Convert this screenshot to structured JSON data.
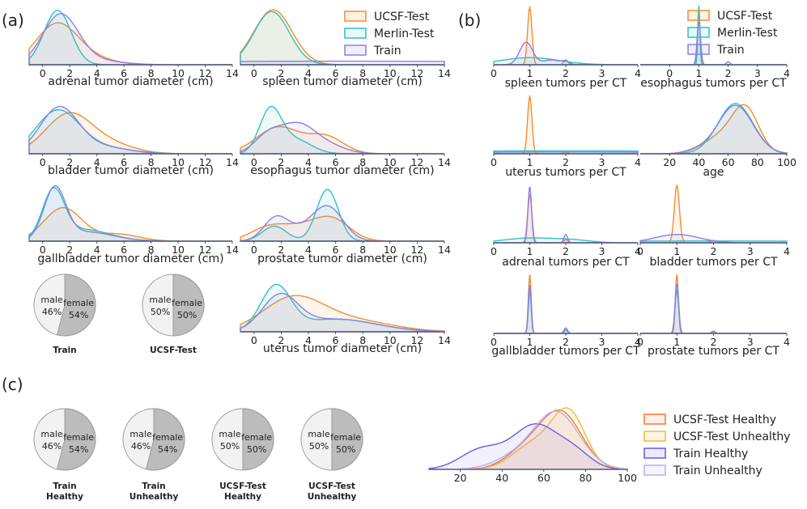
{
  "panel_labels": {
    "a": "(a)",
    "b": "(b)",
    "c": "(c)"
  },
  "colors": {
    "UCSF-Test": "#f28e2b",
    "Merlin-Test": "#2ec4c0",
    "Train": "#8a7fe6",
    "UCSF-Test Healthy": "#f07a30",
    "UCSF-Test Unhealthy": "#f4b836",
    "Train Healthy": "#6b58e0",
    "Train Unhealthy": "#b9b0ee"
  },
  "legend_a": [
    "UCSF-Test",
    "Merlin-Test",
    "Train"
  ],
  "legend_b": [
    "UCSF-Test",
    "Merlin-Test",
    "Train"
  ],
  "legend_c": [
    "UCSF-Test Healthy",
    "UCSF-Test Unhealthy",
    "Train Healthy",
    "Train Unhealthy"
  ],
  "pies_a": [
    {
      "name": "pie-train",
      "caption": [
        "Train"
      ],
      "male_label": "male",
      "male_pct": "46%",
      "female_label": "female",
      "female_pct": "54%",
      "female_share": 0.54
    },
    {
      "name": "pie-ucsf-test",
      "caption": [
        "UCSF-Test"
      ],
      "male_label": "male",
      "male_pct": "50%",
      "female_label": "female",
      "female_pct": "50%",
      "female_share": 0.5
    }
  ],
  "pies_c": [
    {
      "name": "pie-train-healthy",
      "caption": [
        "Train",
        "Healthy"
      ],
      "male_label": "male",
      "male_pct": "46%",
      "female_label": "female",
      "female_pct": "54%",
      "female_share": 0.54
    },
    {
      "name": "pie-train-unhealthy",
      "caption": [
        "Train",
        "Unhealthy"
      ],
      "male_label": "male",
      "male_pct": "46%",
      "female_label": "female",
      "female_pct": "54%",
      "female_share": 0.54
    },
    {
      "name": "pie-ucsf-test-healthy",
      "caption": [
        "UCSF-Test",
        "Healthy"
      ],
      "male_label": "male",
      "male_pct": "50%",
      "female_label": "female",
      "female_pct": "50%",
      "female_share": 0.5
    },
    {
      "name": "pie-ucsf-test-unhealthy",
      "caption": [
        "UCSF-Test",
        "Unhealthy"
      ],
      "male_label": "male",
      "male_pct": "50%",
      "female_label": "female",
      "female_pct": "50%",
      "female_share": 0.5
    }
  ],
  "chart_data": [
    {
      "id": "a-adrenal",
      "type": "area",
      "xlabel": "adrenal tumor diameter (cm)",
      "xlim": [
        -1,
        14
      ],
      "xticks": [
        0,
        2,
        4,
        6,
        8,
        10,
        12,
        14
      ],
      "ylim": [
        0,
        1
      ],
      "series": [
        {
          "name": "UCSF-Test",
          "comps": [
            [
              1.0,
              1.5,
              0.65
            ],
            [
              3.2,
              1.8,
              0.12
            ]
          ]
        },
        {
          "name": "Merlin-Test",
          "comps": [
            [
              1.1,
              1.0,
              0.92
            ]
          ]
        },
        {
          "name": "Train",
          "comps": [
            [
              1.3,
              1.3,
              0.82
            ],
            [
              3.5,
              2.0,
              0.08
            ]
          ]
        }
      ]
    },
    {
      "id": "a-spleen",
      "type": "area",
      "xlabel": "spleen tumor diameter (cm)",
      "xlim": [
        -1,
        14
      ],
      "xticks": [
        0,
        2,
        4,
        6,
        8,
        10,
        12,
        14
      ],
      "ylim": [
        0,
        1
      ],
      "series": [
        {
          "name": "UCSF-Test",
          "comps": [
            [
              1.4,
              1.4,
              0.93
            ]
          ]
        },
        {
          "name": "Merlin-Test",
          "comps": [
            [
              1.3,
              1.3,
              0.9
            ]
          ]
        },
        {
          "name": "Train",
          "comps": [
            [
              6,
              20,
              0.06
            ]
          ]
        }
      ]
    },
    {
      "id": "a-bladder",
      "type": "area",
      "xlabel": "bladder tumor diameter (cm)",
      "xlim": [
        -1,
        14
      ],
      "xticks": [
        0,
        2,
        4,
        6,
        8,
        10,
        12,
        14
      ],
      "ylim": [
        0,
        1
      ],
      "series": [
        {
          "name": "UCSF-Test",
          "comps": [
            [
              1.9,
              1.7,
              0.66
            ],
            [
              5.0,
              1.8,
              0.15
            ]
          ]
        },
        {
          "name": "Merlin-Test",
          "comps": [
            [
              1.1,
              1.6,
              0.72
            ],
            [
              4.5,
              2.0,
              0.1
            ]
          ]
        },
        {
          "name": "Train",
          "comps": [
            [
              1.2,
              1.4,
              0.76
            ],
            [
              4.2,
              2.0,
              0.12
            ]
          ]
        }
      ]
    },
    {
      "id": "a-esophagus",
      "type": "area",
      "xlabel": "esophagus tumor diameter (cm)",
      "xlim": [
        -1,
        14
      ],
      "xticks": [
        0,
        2,
        4,
        6,
        8,
        10,
        12,
        14
      ],
      "ylim": [
        0,
        1
      ],
      "series": [
        {
          "name": "UCSF-Test",
          "comps": [
            [
              1.8,
              1.6,
              0.45
            ],
            [
              5.3,
              1.3,
              0.28
            ]
          ]
        },
        {
          "name": "Merlin-Test",
          "comps": [
            [
              1.2,
              0.8,
              0.72
            ],
            [
              3.0,
              1.2,
              0.24
            ]
          ]
        },
        {
          "name": "Train",
          "comps": [
            [
              1.0,
              1.0,
              0.28
            ],
            [
              3.2,
              1.3,
              0.48
            ],
            [
              5.5,
              1.3,
              0.12
            ]
          ]
        }
      ]
    },
    {
      "id": "a-gallbladder",
      "type": "area",
      "xlabel": "gallbladder tumor diameter (cm)",
      "xlim": [
        -1,
        14
      ],
      "xticks": [
        0,
        2,
        4,
        6,
        8,
        10,
        12,
        14
      ],
      "ylim": [
        0,
        1
      ],
      "series": [
        {
          "name": "UCSF-Test",
          "comps": [
            [
              1.5,
              1.4,
              0.58
            ],
            [
              5.6,
              1.5,
              0.12
            ]
          ]
        },
        {
          "name": "Merlin-Test",
          "comps": [
            [
              0.8,
              0.8,
              0.82
            ],
            [
              3.0,
              2.0,
              0.2
            ]
          ]
        },
        {
          "name": "Train",
          "comps": [
            [
              0.9,
              0.8,
              0.88
            ],
            [
              3.2,
              2.0,
              0.16
            ]
          ]
        }
      ]
    },
    {
      "id": "a-prostate",
      "type": "area",
      "xlabel": "prostate tumor diameter (cm)",
      "xlim": [
        -1,
        14
      ],
      "xticks": [
        0,
        2,
        4,
        6,
        8,
        10,
        12,
        14
      ],
      "ylim": [
        0,
        1
      ],
      "series": [
        {
          "name": "UCSF-Test",
          "comps": [
            [
              1.0,
              1.3,
              0.22
            ],
            [
              3.5,
              1.5,
              0.22
            ],
            [
              5.8,
              1.3,
              0.35
            ]
          ]
        },
        {
          "name": "Merlin-Test",
          "comps": [
            [
              1.5,
              0.9,
              0.26
            ],
            [
              5.4,
              0.8,
              0.9
            ]
          ]
        },
        {
          "name": "Train",
          "comps": [
            [
              1.6,
              0.9,
              0.38
            ],
            [
              5.5,
              1.1,
              0.55
            ],
            [
              3.6,
              1.3,
              0.18
            ]
          ]
        }
      ]
    },
    {
      "id": "a-uterus",
      "type": "area",
      "xlabel": "uterus tumor diameter (cm)",
      "xlim": [
        -1,
        14
      ],
      "xticks": [
        0,
        2,
        4,
        6,
        8,
        10,
        12,
        14
      ],
      "ylim": [
        0,
        1
      ],
      "series": [
        {
          "name": "UCSF-Test",
          "comps": [
            [
              2.8,
              2.2,
              0.55
            ],
            [
              7.0,
              3.0,
              0.2
            ]
          ]
        },
        {
          "name": "Merlin-Test",
          "comps": [
            [
              1.6,
              1.1,
              0.75
            ],
            [
              6.0,
              3.0,
              0.22
            ]
          ]
        },
        {
          "name": "Train",
          "comps": [
            [
              1.9,
              1.3,
              0.58
            ],
            [
              6.0,
              3.0,
              0.22
            ]
          ]
        }
      ]
    },
    {
      "id": "b-spleen",
      "type": "area",
      "xlabel": "spleen tumors per CT",
      "xlim": [
        0,
        4
      ],
      "xticks": [
        0,
        1,
        2,
        3,
        4
      ],
      "ylim": [
        0,
        1
      ],
      "series": [
        {
          "name": "UCSF-Test",
          "comps": [
            [
              1.0,
              0.06,
              0.97
            ],
            [
              2.0,
              0.06,
              0.08
            ]
          ]
        },
        {
          "name": "Merlin-Test",
          "comps": [
            [
              1.0,
              0.8,
              0.12
            ]
          ]
        },
        {
          "name": "Train",
          "comps": [
            [
              0.9,
              0.18,
              0.38
            ],
            [
              2.0,
              0.1,
              0.05
            ],
            [
              1.6,
              0.25,
              0.08
            ]
          ]
        }
      ]
    },
    {
      "id": "b-esophagus",
      "type": "area",
      "xlabel": "esophagus tumors per CT",
      "xlim": [
        -1,
        4
      ],
      "xticks": [
        0,
        1,
        2,
        3,
        4
      ],
      "ylim": [
        0,
        1
      ],
      "series": [
        {
          "name": "UCSF-Test",
          "comps": [
            [
              1.0,
              0.04,
              0.9
            ]
          ]
        },
        {
          "name": "Merlin-Test",
          "comps": [
            [
              1.0,
              0.035,
              1.0
            ]
          ]
        },
        {
          "name": "Train",
          "comps": [
            [
              1.0,
              0.06,
              0.72
            ],
            [
              2.0,
              0.06,
              0.05
            ]
          ]
        }
      ]
    },
    {
      "id": "b-uterus",
      "type": "area",
      "xlabel": "uterus tumors per CT",
      "xlim": [
        0,
        4
      ],
      "xticks": [
        0,
        1,
        2,
        3,
        4
      ],
      "ylim": [
        0,
        1
      ],
      "series": [
        {
          "name": "UCSF-Test",
          "comps": [
            [
              1.0,
              0.06,
              0.97
            ],
            [
              2.0,
              0.06,
              0.03
            ]
          ]
        },
        {
          "name": "Merlin-Test",
          "comps": [
            [
              2.0,
              5.0,
              0.05
            ]
          ]
        },
        {
          "name": "Train",
          "comps": [
            [
              2.0,
              5.0,
              0.03
            ]
          ]
        }
      ]
    },
    {
      "id": "b-age",
      "type": "area",
      "xlabel": "age",
      "xlim": [
        0,
        100
      ],
      "xticks": [
        20,
        40,
        60,
        80,
        100
      ],
      "ylim": [
        0,
        1
      ],
      "series": [
        {
          "name": "UCSF-Test",
          "comps": [
            [
              72,
              9,
              0.72
            ],
            [
              55,
              12,
              0.28
            ]
          ]
        },
        {
          "name": "Merlin-Test",
          "comps": [
            [
              65,
              12,
              0.85
            ]
          ]
        },
        {
          "name": "Train",
          "comps": [
            [
              65,
              12,
              0.82
            ],
            [
              38,
              8,
              0.05
            ]
          ]
        }
      ]
    },
    {
      "id": "b-adrenal",
      "type": "area",
      "xlabel": "adrenal tumors per CT",
      "xlim": [
        0,
        4
      ],
      "xticks": [
        0,
        1,
        2,
        3,
        4
      ],
      "ylim": [
        0,
        1
      ],
      "series": [
        {
          "name": "UCSF-Test",
          "comps": [
            [
              1.0,
              0.06,
              0.8
            ],
            [
              2.0,
              0.06,
              0.05
            ]
          ]
        },
        {
          "name": "Merlin-Test",
          "comps": [
            [
              1.0,
              0.7,
              0.08
            ],
            [
              2.2,
              0.5,
              0.04
            ]
          ]
        },
        {
          "name": "Train",
          "comps": [
            [
              1.0,
              0.05,
              0.95
            ],
            [
              2.0,
              0.05,
              0.14
            ]
          ]
        }
      ]
    },
    {
      "id": "b-bladder",
      "type": "area",
      "xlabel": "bladder tumors per CT",
      "xlim": [
        0,
        4
      ],
      "xticks": [
        0,
        1,
        2,
        3,
        4
      ],
      "ylim": [
        0,
        1
      ],
      "series": [
        {
          "name": "UCSF-Test",
          "comps": [
            [
              1.0,
              0.07,
              0.97
            ],
            [
              2.0,
              0.08,
              0.04
            ]
          ]
        },
        {
          "name": "Merlin-Test",
          "comps": [
            [
              2.0,
              5.0,
              0.03
            ]
          ]
        },
        {
          "name": "Train",
          "comps": [
            [
              1.0,
              0.6,
              0.14
            ]
          ]
        }
      ]
    },
    {
      "id": "b-gallbladder",
      "type": "area",
      "xlabel": "gallbladder tumors per CT",
      "xlim": [
        0,
        4
      ],
      "xticks": [
        0,
        1,
        2,
        3,
        4
      ],
      "ylim": [
        0,
        1
      ],
      "series": [
        {
          "name": "UCSF-Test",
          "comps": [
            [
              1.0,
              0.04,
              0.97
            ],
            [
              2.0,
              0.05,
              0.06
            ]
          ]
        },
        {
          "name": "Merlin-Test",
          "comps": [
            [
              1.0,
              0.04,
              0.7
            ],
            [
              2.0,
              0.05,
              0.05
            ]
          ]
        },
        {
          "name": "Train",
          "comps": [
            [
              1.0,
              0.04,
              0.8
            ],
            [
              2.0,
              0.05,
              0.09
            ]
          ]
        }
      ]
    },
    {
      "id": "b-prostate",
      "type": "area",
      "xlabel": "prostate tumors per CT",
      "xlim": [
        0,
        4
      ],
      "xticks": [
        0,
        1,
        2,
        3,
        4
      ],
      "ylim": [
        0,
        1
      ],
      "series": [
        {
          "name": "UCSF-Test",
          "comps": [
            [
              1.0,
              0.04,
              0.97
            ],
            [
              2.0,
              0.05,
              0.04
            ]
          ]
        },
        {
          "name": "Merlin-Test",
          "comps": [
            [
              1.0,
              0.05,
              0.7
            ]
          ]
        },
        {
          "name": "Train",
          "comps": [
            [
              1.0,
              0.05,
              0.82
            ],
            [
              2.0,
              0.05,
              0.03
            ]
          ]
        }
      ]
    },
    {
      "id": "c-age",
      "type": "area",
      "xlabel": "",
      "xlim": [
        5,
        100
      ],
      "xticks": [
        20,
        40,
        60,
        80,
        100
      ],
      "ylim": [
        0,
        1
      ],
      "series": [
        {
          "name": "UCSF-Test Healthy",
          "comps": [
            [
              68,
              10,
              0.88
            ],
            [
              50,
              9,
              0.25
            ]
          ]
        },
        {
          "name": "UCSF-Test Unhealthy",
          "comps": [
            [
              72,
              8,
              0.85
            ],
            [
              55,
              10,
              0.38
            ]
          ]
        },
        {
          "name": "Train Healthy",
          "comps": [
            [
              56,
              11,
              0.68
            ],
            [
              30,
              10,
              0.3
            ],
            [
              75,
              8,
              0.22
            ]
          ]
        },
        {
          "name": "Train Unhealthy",
          "comps": [
            [
              66,
              11,
              0.88
            ],
            [
              45,
              10,
              0.15
            ]
          ]
        }
      ]
    }
  ]
}
